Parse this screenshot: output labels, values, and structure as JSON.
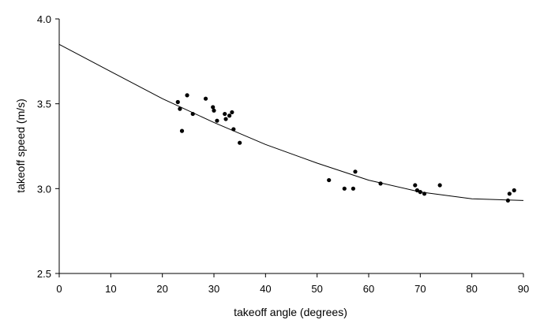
{
  "chart_data": {
    "type": "scatter",
    "title": "",
    "xlabel": "takeoff angle (degrees)",
    "ylabel": "takeoff speed (m/s)",
    "xlim": [
      0,
      90
    ],
    "ylim": [
      2.5,
      4.0
    ],
    "xticks": [
      0,
      10,
      20,
      30,
      40,
      50,
      60,
      70,
      80,
      90
    ],
    "yticks": [
      2.5,
      3.0,
      3.5,
      4.0
    ],
    "ytick_labels": [
      "2.5",
      "3.0",
      "3.5",
      "4.0"
    ],
    "grid": false,
    "legend": "none",
    "colors": {
      "points": "#000000",
      "curve": "#000000",
      "axes": "#000000"
    },
    "points": [
      {
        "x": 23.0,
        "y": 3.51
      },
      {
        "x": 23.4,
        "y": 3.47
      },
      {
        "x": 23.8,
        "y": 3.34
      },
      {
        "x": 24.8,
        "y": 3.55
      },
      {
        "x": 25.9,
        "y": 3.44
      },
      {
        "x": 28.4,
        "y": 3.53
      },
      {
        "x": 29.8,
        "y": 3.48
      },
      {
        "x": 30.0,
        "y": 3.46
      },
      {
        "x": 30.6,
        "y": 3.4
      },
      {
        "x": 32.1,
        "y": 3.44
      },
      {
        "x": 32.3,
        "y": 3.41
      },
      {
        "x": 33.0,
        "y": 3.43
      },
      {
        "x": 33.5,
        "y": 3.45
      },
      {
        "x": 33.8,
        "y": 3.35
      },
      {
        "x": 35.0,
        "y": 3.27
      },
      {
        "x": 52.3,
        "y": 3.05
      },
      {
        "x": 55.3,
        "y": 3.0
      },
      {
        "x": 57.0,
        "y": 3.0
      },
      {
        "x": 57.4,
        "y": 3.1
      },
      {
        "x": 62.3,
        "y": 3.03
      },
      {
        "x": 69.0,
        "y": 3.02
      },
      {
        "x": 69.4,
        "y": 2.99
      },
      {
        "x": 70.0,
        "y": 2.98
      },
      {
        "x": 70.8,
        "y": 2.97
      },
      {
        "x": 73.8,
        "y": 3.02
      },
      {
        "x": 87.0,
        "y": 2.93
      },
      {
        "x": 87.3,
        "y": 2.97
      },
      {
        "x": 88.2,
        "y": 2.99
      }
    ],
    "fit_curve": [
      {
        "x": 0,
        "y": 3.85
      },
      {
        "x": 10,
        "y": 3.69
      },
      {
        "x": 20,
        "y": 3.53
      },
      {
        "x": 30,
        "y": 3.39
      },
      {
        "x": 40,
        "y": 3.26
      },
      {
        "x": 50,
        "y": 3.15
      },
      {
        "x": 60,
        "y": 3.05
      },
      {
        "x": 70,
        "y": 2.98
      },
      {
        "x": 80,
        "y": 2.94
      },
      {
        "x": 90,
        "y": 2.93
      }
    ]
  }
}
